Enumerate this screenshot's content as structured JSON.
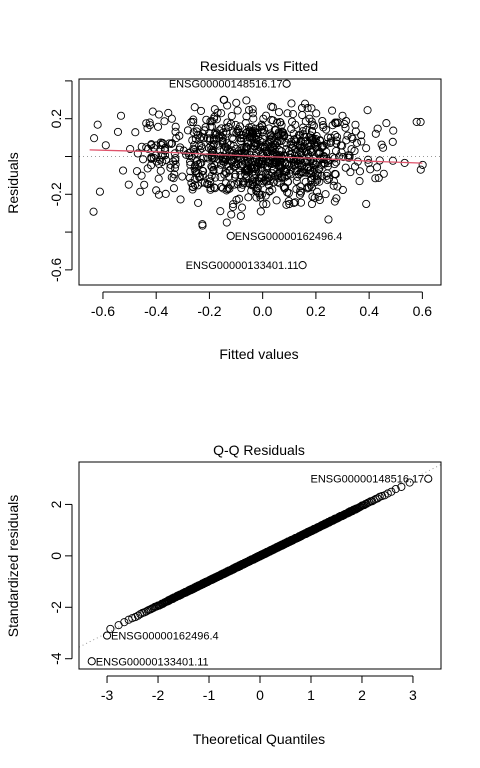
{
  "chart_data": [
    {
      "type": "scatter",
      "title": "Residuals vs Fitted",
      "xlabel": "Fitted values",
      "ylabel": "Residuals",
      "xlim": [
        -0.69,
        0.67
      ],
      "ylim": [
        -0.68,
        0.41
      ],
      "xticks": [
        -0.6,
        -0.4,
        -0.2,
        0.0,
        0.2,
        0.4,
        0.6
      ],
      "xtick_labels": [
        "-0.6",
        "-0.4",
        "-0.2",
        "0.0",
        "0.2",
        "0.4",
        "0.6"
      ],
      "yticks": [
        -0.6,
        -0.4,
        -0.2,
        0.0,
        0.2,
        0.4
      ],
      "ytick_labels": [
        "-0.6",
        "",
        "-0.2",
        "",
        "0.2",
        ""
      ],
      "reference_line": {
        "y": 0,
        "style": "dotted",
        "color": "#999999"
      },
      "smooth_line": {
        "color": "#df536b",
        "x": [
          -0.65,
          -0.4,
          -0.2,
          0.0,
          0.2,
          0.4,
          0.6
        ],
        "y": [
          0.035,
          0.025,
          0.012,
          0.0,
          -0.01,
          -0.025,
          -0.035
        ]
      },
      "points_n": 900,
      "points_sd": 0.12,
      "outliers": [
        {
          "x": 0.09,
          "y": 0.385,
          "label": "ENSG00000148516.17",
          "label_side": "left"
        },
        {
          "x": -0.12,
          "y": -0.42,
          "label": "ENSG00000162496.4",
          "label_side": "right"
        },
        {
          "x": 0.15,
          "y": -0.575,
          "label": "ENSG00000133401.11",
          "label_side": "left"
        }
      ]
    },
    {
      "type": "scatter",
      "title": "Q-Q Residuals",
      "xlabel": "Theoretical Quantiles",
      "ylabel": "Standardized residuals",
      "xlim": [
        -3.55,
        3.55
      ],
      "ylim": [
        -4.4,
        3.65
      ],
      "xticks": [
        -3,
        -2,
        -1,
        0,
        1,
        2,
        3
      ],
      "xtick_labels": [
        "-3",
        "-2",
        "-1",
        "0",
        "1",
        "2",
        "3"
      ],
      "yticks": [
        -4,
        -2,
        0,
        2
      ],
      "ytick_labels": [
        "-4",
        "-2",
        "0",
        "2"
      ],
      "reference_line": {
        "x": [
          -3.55,
          3.55
        ],
        "y": [
          -3.55,
          3.55
        ],
        "style": "dotted",
        "color": "#999999"
      },
      "points_n": 900,
      "outliers": [
        {
          "x": 3.3,
          "y": 3.0,
          "label": "ENSG00000148516.17",
          "label_side": "left"
        },
        {
          "x": -3.0,
          "y": -3.1,
          "label": "ENSG00000162496.4",
          "label_side": "right"
        },
        {
          "x": -3.3,
          "y": -4.1,
          "label": "ENSG00000133401.11",
          "label_side": "right"
        }
      ]
    }
  ]
}
